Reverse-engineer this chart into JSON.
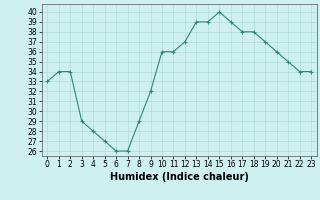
{
  "x": [
    0,
    1,
    2,
    3,
    4,
    5,
    6,
    7,
    8,
    9,
    10,
    11,
    12,
    13,
    14,
    15,
    16,
    17,
    18,
    19,
    20,
    21,
    22,
    23
  ],
  "y": [
    33,
    34,
    34,
    29,
    28,
    27,
    26,
    26,
    29,
    32,
    36,
    36,
    37,
    39,
    39,
    40,
    39,
    38,
    38,
    37,
    36,
    35,
    34,
    34
  ],
  "line_color": "#2e8b6e",
  "marker": "+",
  "bg_color": "#cef0ee",
  "grid_color": "#b0ddd8",
  "xlabel": "Humidex (Indice chaleur)",
  "xlim": [
    -0.5,
    23.5
  ],
  "ylim": [
    25.5,
    40.8
  ],
  "yticks": [
    26,
    27,
    28,
    29,
    30,
    31,
    32,
    33,
    34,
    35,
    36,
    37,
    38,
    39,
    40
  ],
  "xticks": [
    0,
    1,
    2,
    3,
    4,
    5,
    6,
    7,
    8,
    9,
    10,
    11,
    12,
    13,
    14,
    15,
    16,
    17,
    18,
    19,
    20,
    21,
    22,
    23
  ],
  "tick_fontsize": 5.5,
  "xlabel_fontsize": 7
}
